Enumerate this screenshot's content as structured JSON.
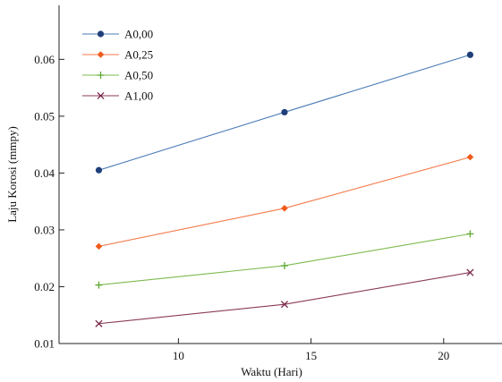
{
  "chart_data": {
    "type": "line",
    "xlabel": "Waktu (Hari)",
    "ylabel": "Laju Korosi (mmpy)",
    "xlim": [
      5.5,
      22.2
    ],
    "ylim": [
      0.01,
      0.0695
    ],
    "x_ticks": [
      10,
      15,
      20
    ],
    "x_tick_labels": [
      "10",
      "15",
      "20"
    ],
    "y_ticks": [
      0.01,
      0.02,
      0.03,
      0.04,
      0.05,
      0.06
    ],
    "y_tick_labels": [
      "0.01",
      "0.02",
      "0.03",
      "0.04",
      "0.05",
      "0.06"
    ],
    "grid": false,
    "legend_position": "top-left",
    "x": [
      7,
      14,
      21
    ],
    "series": [
      {
        "name": "A0,00",
        "values": [
          0.0405,
          0.0507,
          0.0608
        ],
        "color": "#4a7bb7",
        "marker_color": "#1f3f7a",
        "marker": "circle"
      },
      {
        "name": "A0,25",
        "values": [
          0.0271,
          0.0338,
          0.0428
        ],
        "color": "#f47a4a",
        "marker_color": "#f05a1a",
        "marker": "diamond"
      },
      {
        "name": "A0,50",
        "values": [
          0.0203,
          0.0237,
          0.0293
        ],
        "color": "#7dbb4e",
        "marker_color": "#5ea832",
        "marker": "plus"
      },
      {
        "name": "A1,00",
        "values": [
          0.0135,
          0.0169,
          0.0225
        ],
        "color": "#8a3a5a",
        "marker_color": "#7a2a4a",
        "marker": "x"
      }
    ]
  }
}
